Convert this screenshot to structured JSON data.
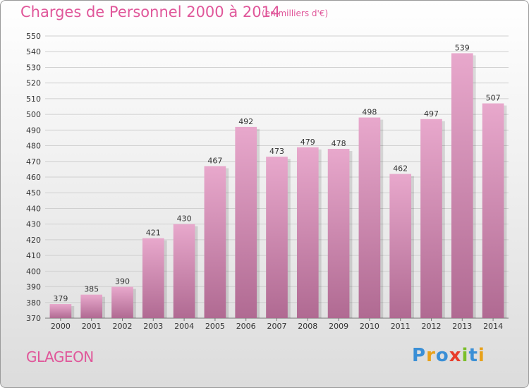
{
  "chart_data": {
    "type": "bar",
    "title": "Charges de Personnel 2000 à 2014",
    "subtitle": "(en milliers d'€)",
    "categories": [
      "2000",
      "2001",
      "2002",
      "2003",
      "2004",
      "2005",
      "2006",
      "2007",
      "2008",
      "2009",
      "2010",
      "2011",
      "2012",
      "2013",
      "2014"
    ],
    "values": [
      379,
      385,
      390,
      421,
      430,
      467,
      492,
      473,
      479,
      478,
      498,
      462,
      497,
      539,
      507
    ],
    "ylim": [
      370,
      550
    ],
    "ytick_step": 10,
    "grid": true,
    "bar_color": "#d98bb5"
  },
  "footer": {
    "commune": "GLAGEON",
    "brand_letters": [
      {
        "ch": "P",
        "color": "#3a8fd6"
      },
      {
        "ch": "r",
        "color": "#e8a11a"
      },
      {
        "ch": "o",
        "color": "#3a8fd6"
      },
      {
        "ch": "x",
        "color": "#e83c2a"
      },
      {
        "ch": "i",
        "color": "#7bbf2a"
      },
      {
        "ch": "t",
        "color": "#3a8fd6"
      },
      {
        "ch": "i",
        "color": "#e8a11a"
      }
    ]
  },
  "colors": {
    "title": "#e0579a",
    "bar_top": "#e8a8cc",
    "bar_bottom": "#b06a92"
  }
}
